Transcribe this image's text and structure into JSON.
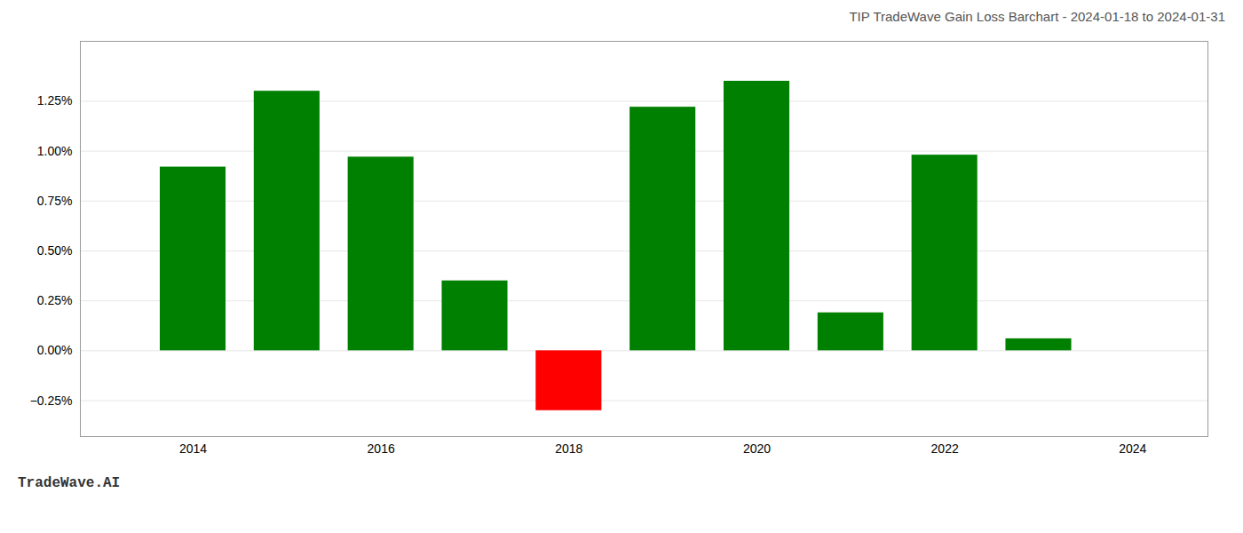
{
  "chart_data": {
    "type": "bar",
    "title": "TIP TradeWave Gain Loss Barchart - 2024-01-18 to 2024-01-31",
    "annotations": [
      "TradeWave.AI"
    ],
    "x": [
      2014,
      2015,
      2016,
      2017,
      2018,
      2019,
      2020,
      2021,
      2022,
      2023
    ],
    "values": [
      0.0092,
      0.013,
      0.0097,
      0.0035,
      -0.003,
      0.0122,
      0.0135,
      0.0019,
      0.0098,
      0.0006
    ],
    "colors": [
      "#008000",
      "#008000",
      "#008000",
      "#008000",
      "#ff0000",
      "#008000",
      "#008000",
      "#008000",
      "#008000",
      "#008000"
    ],
    "xlim": [
      2012.8,
      2024.8
    ],
    "xticks": [
      2014,
      2016,
      2018,
      2020,
      2022,
      2024
    ],
    "ylim": [
      -0.0043,
      0.0155
    ],
    "yticks": [
      {
        "value": -0.0025,
        "label": "−0.25%"
      },
      {
        "value": 0.0,
        "label": "0.00%"
      },
      {
        "value": 0.0025,
        "label": "0.25%"
      },
      {
        "value": 0.005,
        "label": "0.50%"
      },
      {
        "value": 0.0075,
        "label": "0.75%"
      },
      {
        "value": 0.01,
        "label": "1.00%"
      },
      {
        "value": 0.0125,
        "label": "1.25%"
      }
    ],
    "grid": true
  }
}
